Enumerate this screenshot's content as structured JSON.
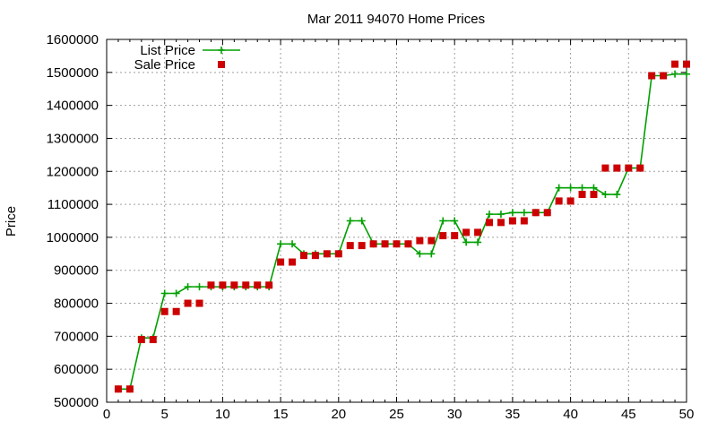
{
  "chart_data": {
    "type": "line",
    "title": "Mar 2011 94070 Home Prices",
    "xlabel": "",
    "ylabel": "Price",
    "xlim": [
      0,
      50
    ],
    "ylim": [
      500000,
      1600000
    ],
    "x_ticks": [
      0,
      5,
      10,
      15,
      20,
      25,
      30,
      35,
      40,
      45,
      50
    ],
    "y_ticks": [
      500000,
      600000,
      700000,
      800000,
      900000,
      1000000,
      1100000,
      1200000,
      1300000,
      1400000,
      1500000,
      1600000
    ],
    "grid": true,
    "legend_position": "top-left",
    "x": [
      1,
      2,
      3,
      4,
      5,
      6,
      7,
      8,
      9,
      10,
      11,
      12,
      13,
      14,
      15,
      16,
      17,
      18,
      19,
      20,
      21,
      22,
      23,
      24,
      25,
      26,
      27,
      28,
      29,
      30,
      31,
      32,
      33,
      34,
      35,
      36,
      37,
      38,
      39,
      40,
      41,
      42,
      43,
      44,
      45,
      46,
      47,
      48,
      49,
      50
    ],
    "series": [
      {
        "name": "List Price",
        "style": "line-plus",
        "color": "#00a000",
        "values": [
          540000,
          540000,
          695000,
          695000,
          830000,
          830000,
          850000,
          850000,
          850000,
          850000,
          850000,
          850000,
          850000,
          850000,
          980000,
          980000,
          950000,
          950000,
          950000,
          950000,
          1050000,
          1050000,
          980000,
          980000,
          980000,
          980000,
          950000,
          950000,
          1050000,
          1050000,
          985000,
          985000,
          1070000,
          1070000,
          1075000,
          1075000,
          1075000,
          1075000,
          1150000,
          1150000,
          1150000,
          1150000,
          1130000,
          1130000,
          1210000,
          1210000,
          1490000,
          1490000,
          1495000,
          1495000
        ]
      },
      {
        "name": "Sale Price",
        "style": "square",
        "color": "#cc0000",
        "values": [
          540000,
          540000,
          690000,
          690000,
          775000,
          775000,
          800000,
          800000,
          855000,
          855000,
          855000,
          855000,
          855000,
          855000,
          925000,
          925000,
          945000,
          945000,
          950000,
          950000,
          975000,
          975000,
          980000,
          980000,
          980000,
          980000,
          990000,
          990000,
          1005000,
          1005000,
          1015000,
          1015000,
          1045000,
          1045000,
          1050000,
          1050000,
          1075000,
          1075000,
          1110000,
          1110000,
          1130000,
          1130000,
          1210000,
          1210000,
          1210000,
          1210000,
          1490000,
          1490000,
          1525000,
          1525000
        ]
      }
    ]
  },
  "colors": {
    "grid": "#a0a0a0",
    "axis": "#000000"
  }
}
